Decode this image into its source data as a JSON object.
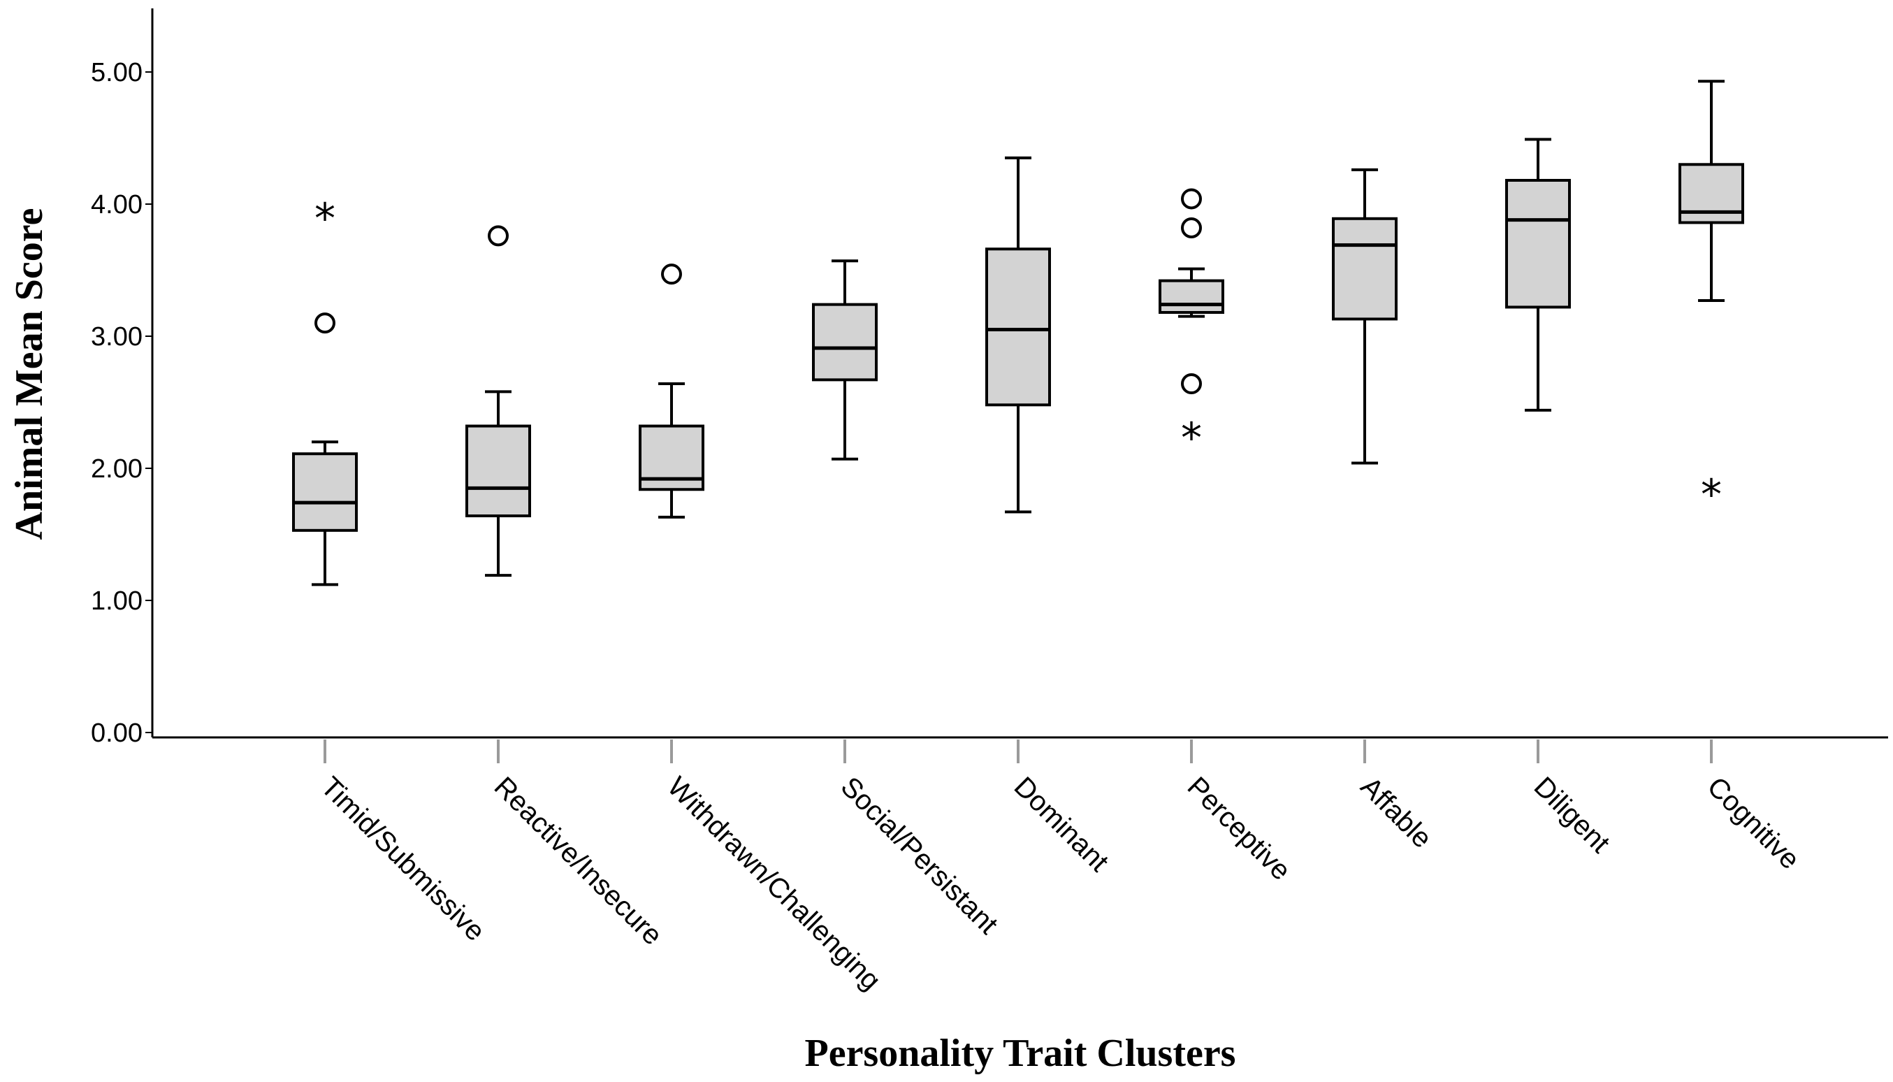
{
  "chart_data": {
    "type": "boxplot",
    "title": "",
    "xlabel": "Personality Trait Clusters",
    "ylabel": "Animal Mean Score",
    "ylim": [
      0,
      5.5
    ],
    "yticks": [
      0,
      1,
      2,
      3,
      4,
      5
    ],
    "ytick_labels": [
      "0.00",
      "1.00",
      "2.00",
      "3.00",
      "4.00",
      "5.00"
    ],
    "box_color": "#d3d3d3",
    "line_color": "#000000",
    "categories": [
      {
        "name": "Timid/Submissive",
        "min": 1.12,
        "q1": 1.53,
        "median": 1.74,
        "q3": 2.11,
        "max": 2.2,
        "outliers": [
          {
            "value": 3.1,
            "marker": "circle"
          },
          {
            "value": 3.92,
            "marker": "star"
          }
        ]
      },
      {
        "name": "Reactive/Insecure",
        "min": 1.19,
        "q1": 1.64,
        "median": 1.85,
        "q3": 2.32,
        "max": 2.58,
        "outliers": [
          {
            "value": 3.76,
            "marker": "circle"
          }
        ]
      },
      {
        "name": "Withdrawn/Challenging",
        "min": 1.63,
        "q1": 1.84,
        "median": 1.92,
        "q3": 2.32,
        "max": 2.64,
        "outliers": [
          {
            "value": 3.47,
            "marker": "circle"
          }
        ]
      },
      {
        "name": "Social/Persistant",
        "min": 2.07,
        "q1": 2.67,
        "median": 2.91,
        "q3": 3.24,
        "max": 3.57,
        "outliers": []
      },
      {
        "name": "Dominant",
        "min": 1.67,
        "q1": 2.48,
        "median": 3.05,
        "q3": 3.66,
        "max": 4.35,
        "outliers": []
      },
      {
        "name": "Perceptive",
        "min": 3.15,
        "q1": 3.18,
        "median": 3.24,
        "q3": 3.42,
        "max": 3.51,
        "outliers": [
          {
            "value": 2.64,
            "marker": "circle"
          },
          {
            "value": 3.82,
            "marker": "circle"
          },
          {
            "value": 4.04,
            "marker": "circle"
          },
          {
            "value": 2.26,
            "marker": "star"
          }
        ]
      },
      {
        "name": "Affable",
        "min": 2.04,
        "q1": 3.13,
        "median": 3.69,
        "q3": 3.89,
        "max": 4.26,
        "outliers": []
      },
      {
        "name": "Diligent",
        "min": 2.44,
        "q1": 3.22,
        "median": 3.88,
        "q3": 4.18,
        "max": 4.49,
        "outliers": []
      },
      {
        "name": "Cognitive",
        "min": 3.27,
        "q1": 3.86,
        "median": 3.94,
        "q3": 4.3,
        "max": 4.93,
        "outliers": [
          {
            "value": 1.83,
            "marker": "star"
          }
        ]
      }
    ]
  }
}
